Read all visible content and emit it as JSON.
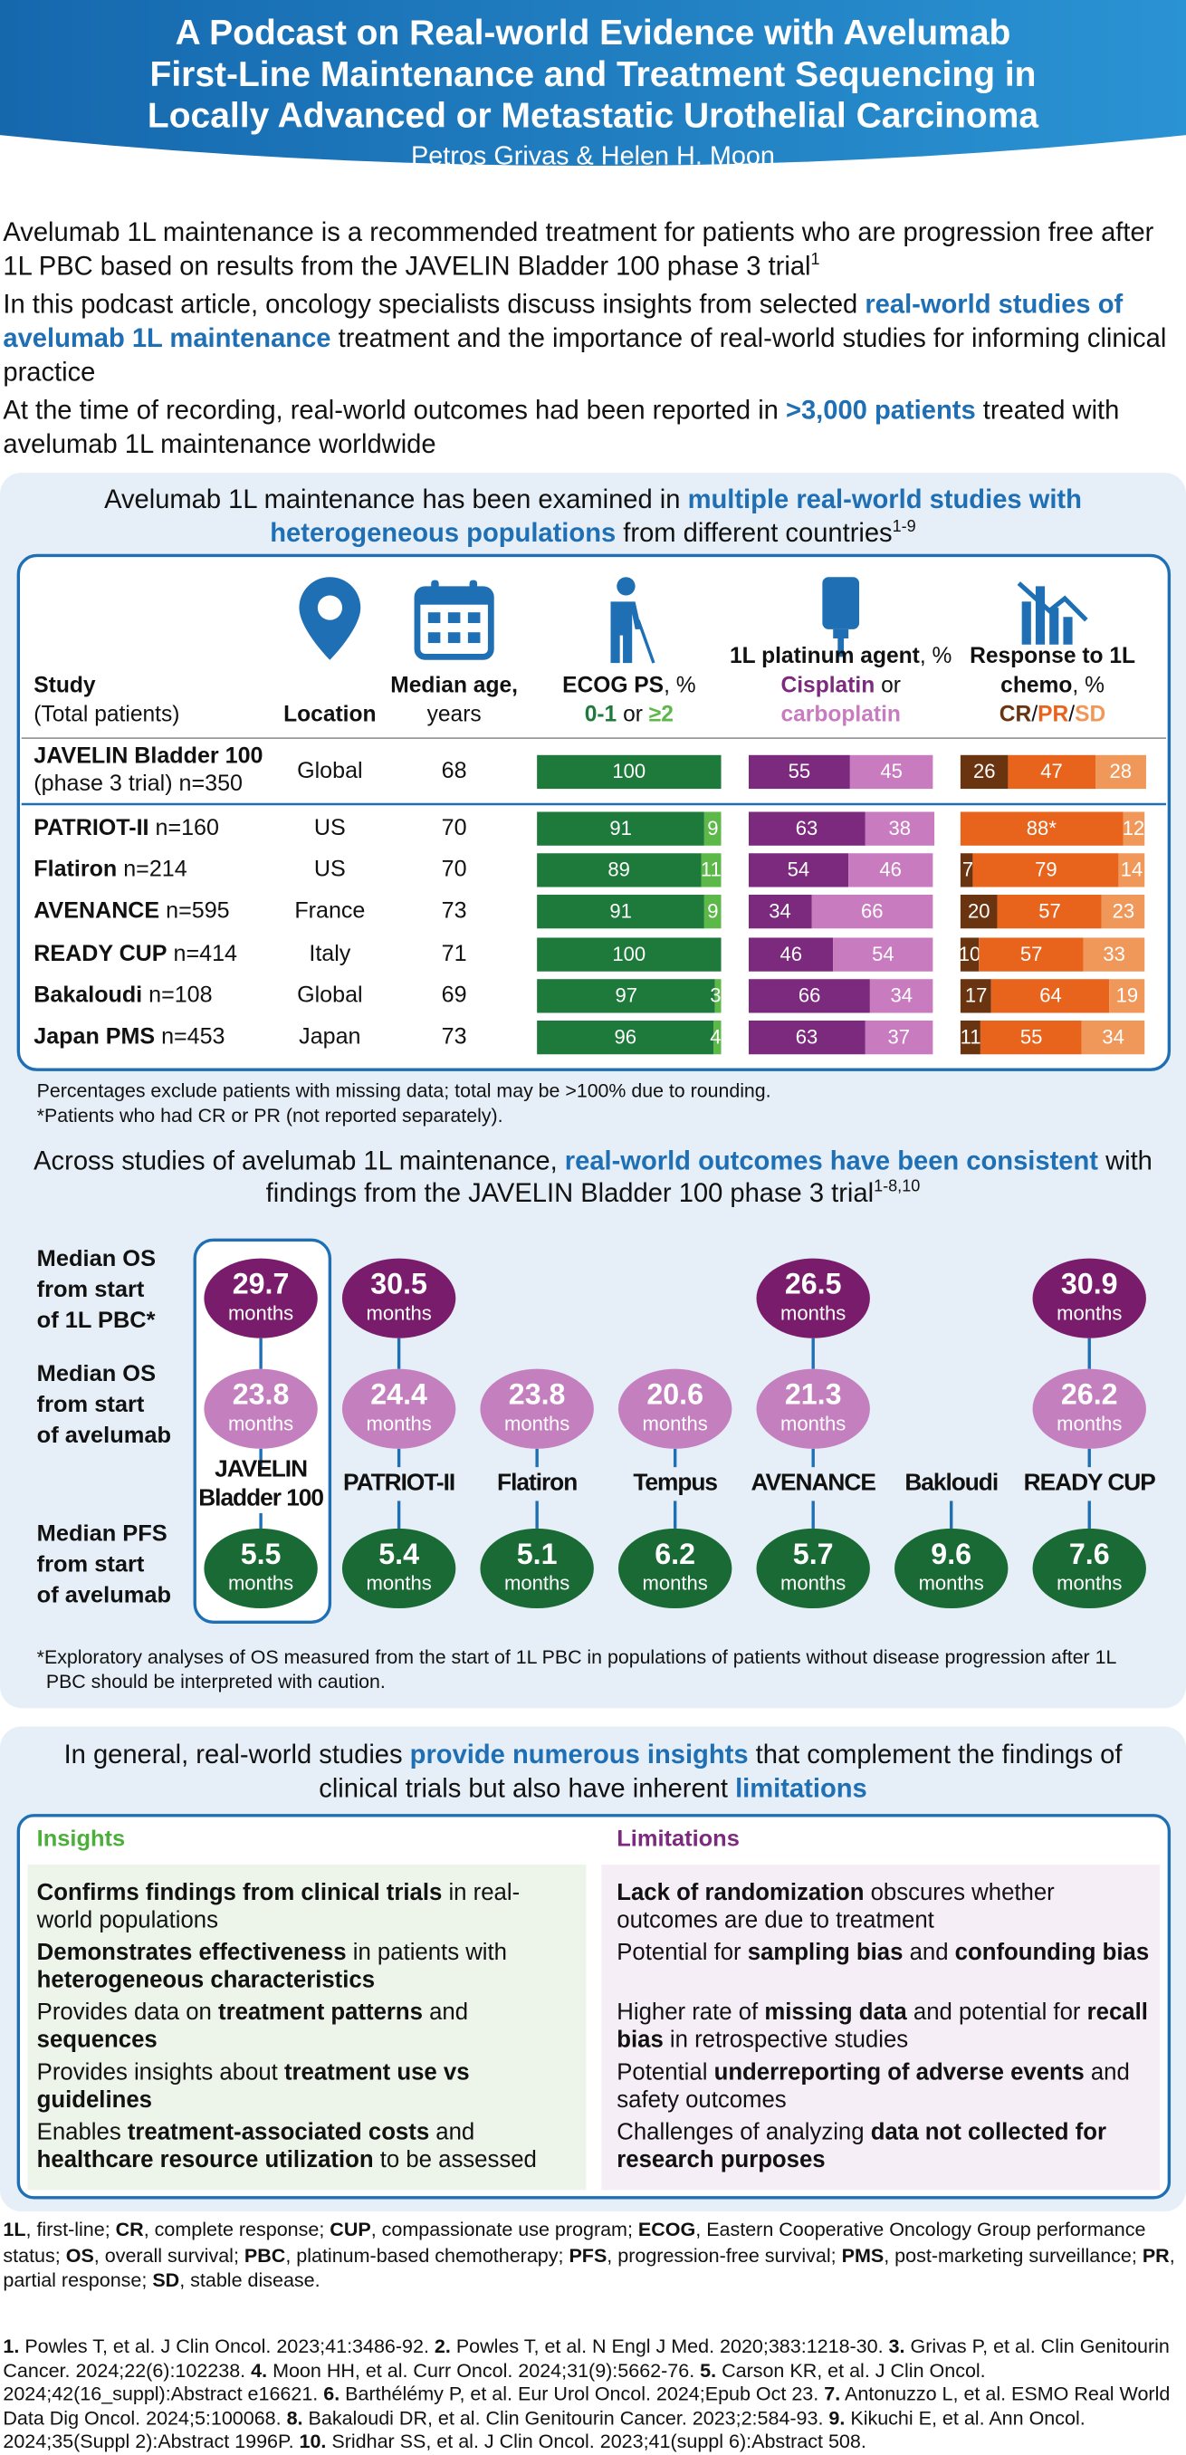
{
  "header": {
    "title_lines": [
      "A Podcast on Real-world Evidence with Avelumab",
      "First-Line Maintenance and Treatment Sequencing in",
      "Locally Advanced or Metastatic Urothelial Carcinoma"
    ],
    "authors": "Petros Grivas & Helen H. Moon"
  },
  "intro": [
    [
      "Avelumab 1L maintenance is a recommended treatment for patients who are progression free after 1L PBC based on results from the JAVELIN Bladder 100 phase 3 trial",
      {
        "text": "1",
        "style": "sup"
      }
    ],
    [
      "In this podcast article, oncology specialists discuss insights from selected ",
      {
        "text": "real-world studies of avelumab 1L maintenance",
        "style": "blue"
      },
      " treatment and the importance of real-world studies for informing clinical practice"
    ],
    [
      "At the time of recording, real-world outcomes had been reported in ",
      {
        "text": ">3,000 patients",
        "style": "blue"
      },
      " treated with avelumab 1L maintenance worldwide"
    ]
  ],
  "studies_section": {
    "heading": [
      "Avelumab 1L maintenance has been examined in ",
      {
        "text": "multiple real-world studies with heterogeneous populations",
        "style": "blue"
      },
      " from different countries",
      {
        "text": "1-9",
        "style": "sup"
      }
    ],
    "headers": [
      [
        [
          {
            "text": "Study",
            "style": "b"
          }
        ],
        [
          "(Total patients)"
        ]
      ],
      [
        [
          {
            "text": "Location",
            "style": "b"
          }
        ]
      ],
      [
        [
          {
            "text": "Median age,",
            "style": "b"
          }
        ],
        [
          "years"
        ]
      ],
      [
        [
          {
            "text": "ECOG PS",
            "style": "b"
          },
          ", %"
        ],
        [
          {
            "text": "0-1",
            "style": "green"
          },
          " or ",
          {
            "text": "≥2",
            "style": "lightgreen"
          }
        ]
      ],
      [
        [
          {
            "text": "1L platinum agent",
            "style": "b"
          },
          ", %"
        ],
        [
          {
            "text": "Cisplatin",
            "style": "purple"
          },
          " or"
        ],
        [
          {
            "text": "carboplatin",
            "style": "pink"
          }
        ]
      ],
      [
        [
          {
            "text": "Response to 1L",
            "style": "b"
          }
        ],
        [
          {
            "text": "chemo",
            "style": "b"
          },
          ", %"
        ],
        [
          {
            "text": "CR",
            "style": "brown"
          },
          "/",
          {
            "text": "PR",
            "style": "orange"
          },
          "/",
          {
            "text": "SD",
            "style": "lightorange"
          }
        ]
      ]
    ],
    "bar_colors": {
      "ecog": [
        "#1e7a3a",
        "#5cb848"
      ],
      "platinum": [
        "#7b2a7e",
        "#c87bbf"
      ],
      "response": [
        "#6b3410",
        "#e8641c",
        "#f0985a"
      ]
    },
    "rows": [
      {
        "study": "JAVELIN Bladder 100",
        "detail": "(phase 3 trial) n=350",
        "location": "Global",
        "age": 68,
        "ecog": [
          100
        ],
        "platinum": [
          55,
          45
        ],
        "response": [
          26,
          47,
          28
        ]
      },
      {
        "study": "PATRIOT-II",
        "detail": "n=160",
        "location": "US",
        "age": 70,
        "ecog": [
          91,
          9
        ],
        "platinum": [
          63,
          38
        ],
        "response": [
          {
            "value": 88,
            "label": "88*"
          },
          12
        ]
      },
      {
        "study": "Flatiron",
        "detail": "n=214",
        "location": "US",
        "age": 70,
        "ecog": [
          89,
          11
        ],
        "platinum": [
          54,
          46
        ],
        "response": [
          7,
          79,
          14
        ]
      },
      {
        "study": "AVENANCE",
        "detail": "n=595",
        "location": "France",
        "age": 73,
        "ecog": [
          91,
          9
        ],
        "platinum": [
          34,
          66
        ],
        "response": [
          20,
          57,
          23
        ]
      },
      {
        "study": "READY CUP",
        "detail": "n=414",
        "location": "Italy",
        "age": 71,
        "ecog": [
          100
        ],
        "platinum": [
          46,
          54
        ],
        "response": [
          10,
          57,
          33
        ]
      },
      {
        "study": "Bakaloudi",
        "detail": "n=108",
        "location": "Global",
        "age": 69,
        "ecog": [
          97,
          3
        ],
        "platinum": [
          66,
          34
        ],
        "response": [
          17,
          64,
          19
        ]
      },
      {
        "study": "Japan PMS",
        "detail": "n=453",
        "location": "Japan",
        "age": 73,
        "ecog": [
          96,
          4
        ],
        "platinum": [
          63,
          37
        ],
        "response": [
          11,
          55,
          34
        ]
      }
    ],
    "footnotes": [
      "Percentages exclude patients with missing data; total may be >100% due to rounding.",
      "*Patients who had CR or PR (not reported separately)."
    ]
  },
  "outcomes_section": {
    "heading": [
      "Across studies of avelumab 1L maintenance, ",
      {
        "text": "real-world outcomes have been consistent",
        "style": "blue"
      },
      " with findings from the JAVELIN Bladder 100 phase 3 trial",
      {
        "text": "1-8,10",
        "style": "sup"
      }
    ],
    "row_labels": [
      [
        "Median OS",
        "from start",
        "of 1L PBC*"
      ],
      [
        "Median OS",
        "from start",
        "of avelumab"
      ],
      [
        "Median PFS",
        "from start",
        "of avelumab"
      ]
    ],
    "unit": "months",
    "colors": [
      "#7a1c6c",
      "#c47fbf",
      "#1a6a35"
    ],
    "studies": [
      {
        "name_lines": [
          "JAVELIN",
          "Bladder 100"
        ],
        "os_pbc": 29.7,
        "os_avelumab": 23.8,
        "pfs": 5.5
      },
      {
        "name_lines": [
          "PATRIOT-II"
        ],
        "os_pbc": 30.5,
        "os_avelumab": 24.4,
        "pfs": 5.4
      },
      {
        "name_lines": [
          "Flatiron"
        ],
        "os_pbc": null,
        "os_avelumab": 23.8,
        "pfs": 5.1
      },
      {
        "name_lines": [
          "Tempus"
        ],
        "os_pbc": null,
        "os_avelumab": 20.6,
        "pfs": 6.2
      },
      {
        "name_lines": [
          "AVENANCE"
        ],
        "os_pbc": 26.5,
        "os_avelumab": 21.3,
        "pfs": 5.7
      },
      {
        "name_lines": [
          "Bakloudi"
        ],
        "os_pbc": null,
        "os_avelumab": null,
        "pfs": 9.6
      },
      {
        "name_lines": [
          "READY CUP"
        ],
        "os_pbc": 30.9,
        "os_avelumab": 26.2,
        "pfs": 7.6
      }
    ],
    "footnote": "*Exploratory analyses of OS measured from the start of 1L PBC in populations of patients without disease progression after 1L PBC should be interpreted with caution."
  },
  "insights_section": {
    "heading": [
      "In general, real-world studies ",
      {
        "text": "provide numerous insights",
        "style": "blue"
      },
      " that complement the findings of clinical trials but also have inherent ",
      {
        "text": "limitations",
        "style": "blue"
      }
    ],
    "insights": {
      "title": "Insights",
      "items": [
        [
          {
            "text": "Confirms findings from clinical trials",
            "style": "b"
          },
          " in real-world populations"
        ],
        [
          {
            "text": "Demonstrates effectiveness",
            "style": "b"
          },
          " in patients with ",
          {
            "text": "heterogeneous characteristics",
            "style": "b"
          }
        ],
        [
          "Provides data on ",
          {
            "text": "treatment patterns",
            "style": "b"
          },
          " and ",
          {
            "text": "sequences",
            "style": "b"
          }
        ],
        [
          "Provides insights about ",
          {
            "text": "treatment use vs guidelines",
            "style": "b"
          }
        ],
        [
          "Enables ",
          {
            "text": "treatment-associated costs",
            "style": "b"
          },
          " and ",
          {
            "text": "healthcare resource utilization",
            "style": "b"
          },
          " to be assessed"
        ]
      ]
    },
    "limitations": {
      "title": "Limitations",
      "items": [
        [
          {
            "text": "Lack of randomization",
            "style": "b"
          },
          " obscures whether outcomes are due to treatment"
        ],
        [
          "Potential for ",
          {
            "text": "sampling bias",
            "style": "b"
          },
          " and ",
          {
            "text": "confounding bias",
            "style": "b"
          }
        ],
        [
          "Higher rate of ",
          {
            "text": "missing data",
            "style": "b"
          },
          " and potential for ",
          {
            "text": "recall bias",
            "style": "b"
          },
          " in retrospective studies"
        ],
        [
          "Potential ",
          {
            "text": "underreporting of adverse events",
            "style": "b"
          },
          " and safety outcomes"
        ],
        [
          "Challenges of analyzing ",
          {
            "text": "data not collected for research purposes",
            "style": "b"
          }
        ]
      ]
    }
  },
  "abbreviations": [
    {
      "text": "1L",
      "style": "b"
    },
    ", first-line; ",
    {
      "text": "CR",
      "style": "b"
    },
    ", complete response; ",
    {
      "text": "CUP",
      "style": "b"
    },
    ", compassionate use program; ",
    {
      "text": "ECOG",
      "style": "b"
    },
    ", Eastern Cooperative Oncology Group performance status; ",
    {
      "text": "OS",
      "style": "b"
    },
    ", overall survival; ",
    {
      "text": "PBC",
      "style": "b"
    },
    ", platinum-based chemotherapy; ",
    {
      "text": "PFS",
      "style": "b"
    },
    ", progression-free survival; ",
    {
      "text": "PMS",
      "style": "b"
    },
    ", post-marketing surveillance; ",
    {
      "text": "PR",
      "style": "b"
    },
    ", partial response; ",
    {
      "text": "SD",
      "style": "b"
    },
    ", stable disease."
  ],
  "references": [
    {
      "text": "1.",
      "style": "b"
    },
    " Powles T, et al. J Clin Oncol. 2023;41:3486-92. ",
    {
      "text": "2.",
      "style": "b"
    },
    " Powles T, et al. N Engl J Med. 2020;383:1218-30. ",
    {
      "text": "3.",
      "style": "b"
    },
    " Grivas P, et al. Clin Genitourin Cancer. 2024;22(6):102238. ",
    {
      "text": "4.",
      "style": "b"
    },
    " Moon HH, et al. Curr Oncol. 2024;31(9):5662-76. ",
    {
      "text": "5.",
      "style": "b"
    },
    " Carson KR, et al. J Clin Oncol. 2024;42(16_suppl):Abstract e16621. ",
    {
      "text": "6.",
      "style": "b"
    },
    " Barthélémy P, et al. Eur Urol Oncol. 2024;Epub Oct 23. ",
    {
      "text": "7.",
      "style": "b"
    },
    " Antonuzzo L, et al. ESMO Real World Data Dig Oncol. 2024;5:100068. ",
    {
      "text": "8.",
      "style": "b"
    },
    " Bakaloudi DR, et al. Clin Genitourin Cancer. 2023;2:584-93. ",
    {
      "text": "9.",
      "style": "b"
    },
    " Kikuchi E, et al. Ann Oncol. 2024;35(Suppl 2):Abstract 1996P. ",
    {
      "text": "10.",
      "style": "b"
    },
    " Sridhar SS, et al. J Clin Oncol. 2023;41(suppl 6):Abstract 508."
  ]
}
